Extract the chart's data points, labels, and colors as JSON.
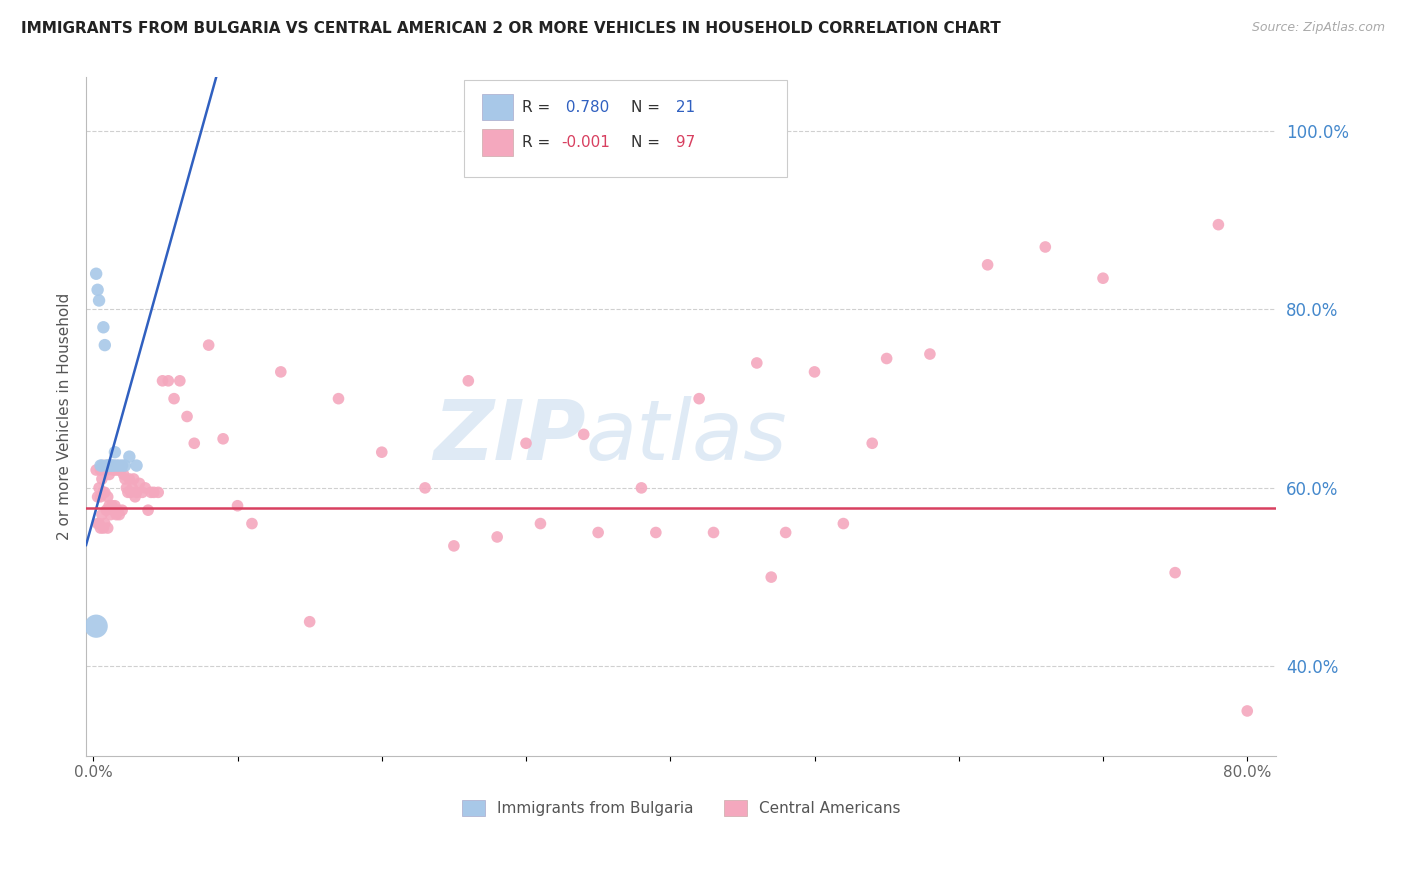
{
  "title": "IMMIGRANTS FROM BULGARIA VS CENTRAL AMERICAN 2 OR MORE VEHICLES IN HOUSEHOLD CORRELATION CHART",
  "source": "Source: ZipAtlas.com",
  "ylabel": "2 or more Vehicles in Household",
  "bg_color": "#ffffff",
  "grid_color": "#d0d0d0",
  "watermark_zip": "ZIP",
  "watermark_atlas": "atlas",
  "bulgaria_R": 0.78,
  "bulgaria_N": 21,
  "central_R": -0.001,
  "central_N": 97,
  "bulgaria_color": "#a8c8e8",
  "central_color": "#f4a8be",
  "bulgaria_line_color": "#3060c0",
  "central_line_color": "#d84060",
  "legend_text_color": "#3060c0",
  "ytick_color": "#4488cc",
  "xlim": [
    -0.005,
    0.82
  ],
  "ylim": [
    0.3,
    1.06
  ],
  "yticks": [
    0.4,
    0.6,
    0.8,
    1.0
  ],
  "yticklabels": [
    "40.0%",
    "60.0%",
    "80.0%",
    "100.0%"
  ],
  "xticks": [
    0.0,
    0.1,
    0.2,
    0.3,
    0.4,
    0.5,
    0.6,
    0.7,
    0.8
  ],
  "xticklabels": [
    "0.0%",
    "",
    "",
    "",
    "",
    "",
    "",
    "",
    "80.0%"
  ],
  "bulgaria_line_x0": 0.0,
  "bulgaria_line_y0": 0.565,
  "bulgaria_line_x1": 0.08,
  "bulgaria_line_y1": 1.03,
  "central_line_y": 0.577,
  "bulgaria_x": [
    0.002,
    0.003,
    0.004,
    0.005,
    0.006,
    0.007,
    0.008,
    0.009,
    0.01,
    0.011,
    0.012,
    0.013,
    0.014,
    0.015,
    0.016,
    0.018,
    0.02,
    0.022,
    0.025,
    0.03,
    0.002
  ],
  "bulgaria_y": [
    0.84,
    0.822,
    0.81,
    0.625,
    0.625,
    0.78,
    0.76,
    0.625,
    0.625,
    0.625,
    0.625,
    0.625,
    0.625,
    0.64,
    0.625,
    0.625,
    0.625,
    0.625,
    0.635,
    0.625,
    0.445
  ],
  "bulgaria_size": [
    80,
    80,
    80,
    80,
    80,
    80,
    80,
    80,
    80,
    80,
    80,
    80,
    80,
    80,
    80,
    80,
    80,
    80,
    80,
    80,
    280
  ],
  "central_x": [
    0.002,
    0.003,
    0.003,
    0.004,
    0.004,
    0.005,
    0.005,
    0.005,
    0.006,
    0.006,
    0.007,
    0.007,
    0.007,
    0.008,
    0.008,
    0.008,
    0.009,
    0.009,
    0.01,
    0.01,
    0.01,
    0.011,
    0.011,
    0.012,
    0.012,
    0.013,
    0.013,
    0.014,
    0.014,
    0.015,
    0.015,
    0.016,
    0.016,
    0.017,
    0.017,
    0.018,
    0.018,
    0.019,
    0.02,
    0.02,
    0.021,
    0.022,
    0.023,
    0.024,
    0.025,
    0.026,
    0.027,
    0.028,
    0.029,
    0.03,
    0.032,
    0.034,
    0.036,
    0.038,
    0.04,
    0.042,
    0.045,
    0.048,
    0.052,
    0.056,
    0.06,
    0.065,
    0.07,
    0.08,
    0.09,
    0.1,
    0.11,
    0.13,
    0.15,
    0.17,
    0.2,
    0.23,
    0.26,
    0.3,
    0.34,
    0.38,
    0.42,
    0.46,
    0.5,
    0.54,
    0.58,
    0.62,
    0.66,
    0.7,
    0.75,
    0.78,
    0.8,
    0.55,
    0.48,
    0.52,
    0.25,
    0.28,
    0.31,
    0.35,
    0.39,
    0.43,
    0.47
  ],
  "central_y": [
    0.62,
    0.56,
    0.59,
    0.6,
    0.56,
    0.62,
    0.59,
    0.555,
    0.61,
    0.57,
    0.625,
    0.595,
    0.555,
    0.625,
    0.595,
    0.56,
    0.62,
    0.575,
    0.625,
    0.59,
    0.555,
    0.615,
    0.58,
    0.625,
    0.57,
    0.625,
    0.58,
    0.62,
    0.575,
    0.625,
    0.58,
    0.62,
    0.57,
    0.625,
    0.575,
    0.62,
    0.57,
    0.62,
    0.625,
    0.575,
    0.615,
    0.61,
    0.6,
    0.595,
    0.61,
    0.595,
    0.6,
    0.61,
    0.59,
    0.595,
    0.605,
    0.595,
    0.6,
    0.575,
    0.595,
    0.595,
    0.595,
    0.72,
    0.72,
    0.7,
    0.72,
    0.68,
    0.65,
    0.76,
    0.655,
    0.58,
    0.56,
    0.73,
    0.45,
    0.7,
    0.64,
    0.6,
    0.72,
    0.65,
    0.66,
    0.6,
    0.7,
    0.74,
    0.73,
    0.65,
    0.75,
    0.85,
    0.87,
    0.835,
    0.505,
    0.895,
    0.35,
    0.745,
    0.55,
    0.56,
    0.535,
    0.545,
    0.56,
    0.55,
    0.55,
    0.55,
    0.5
  ]
}
